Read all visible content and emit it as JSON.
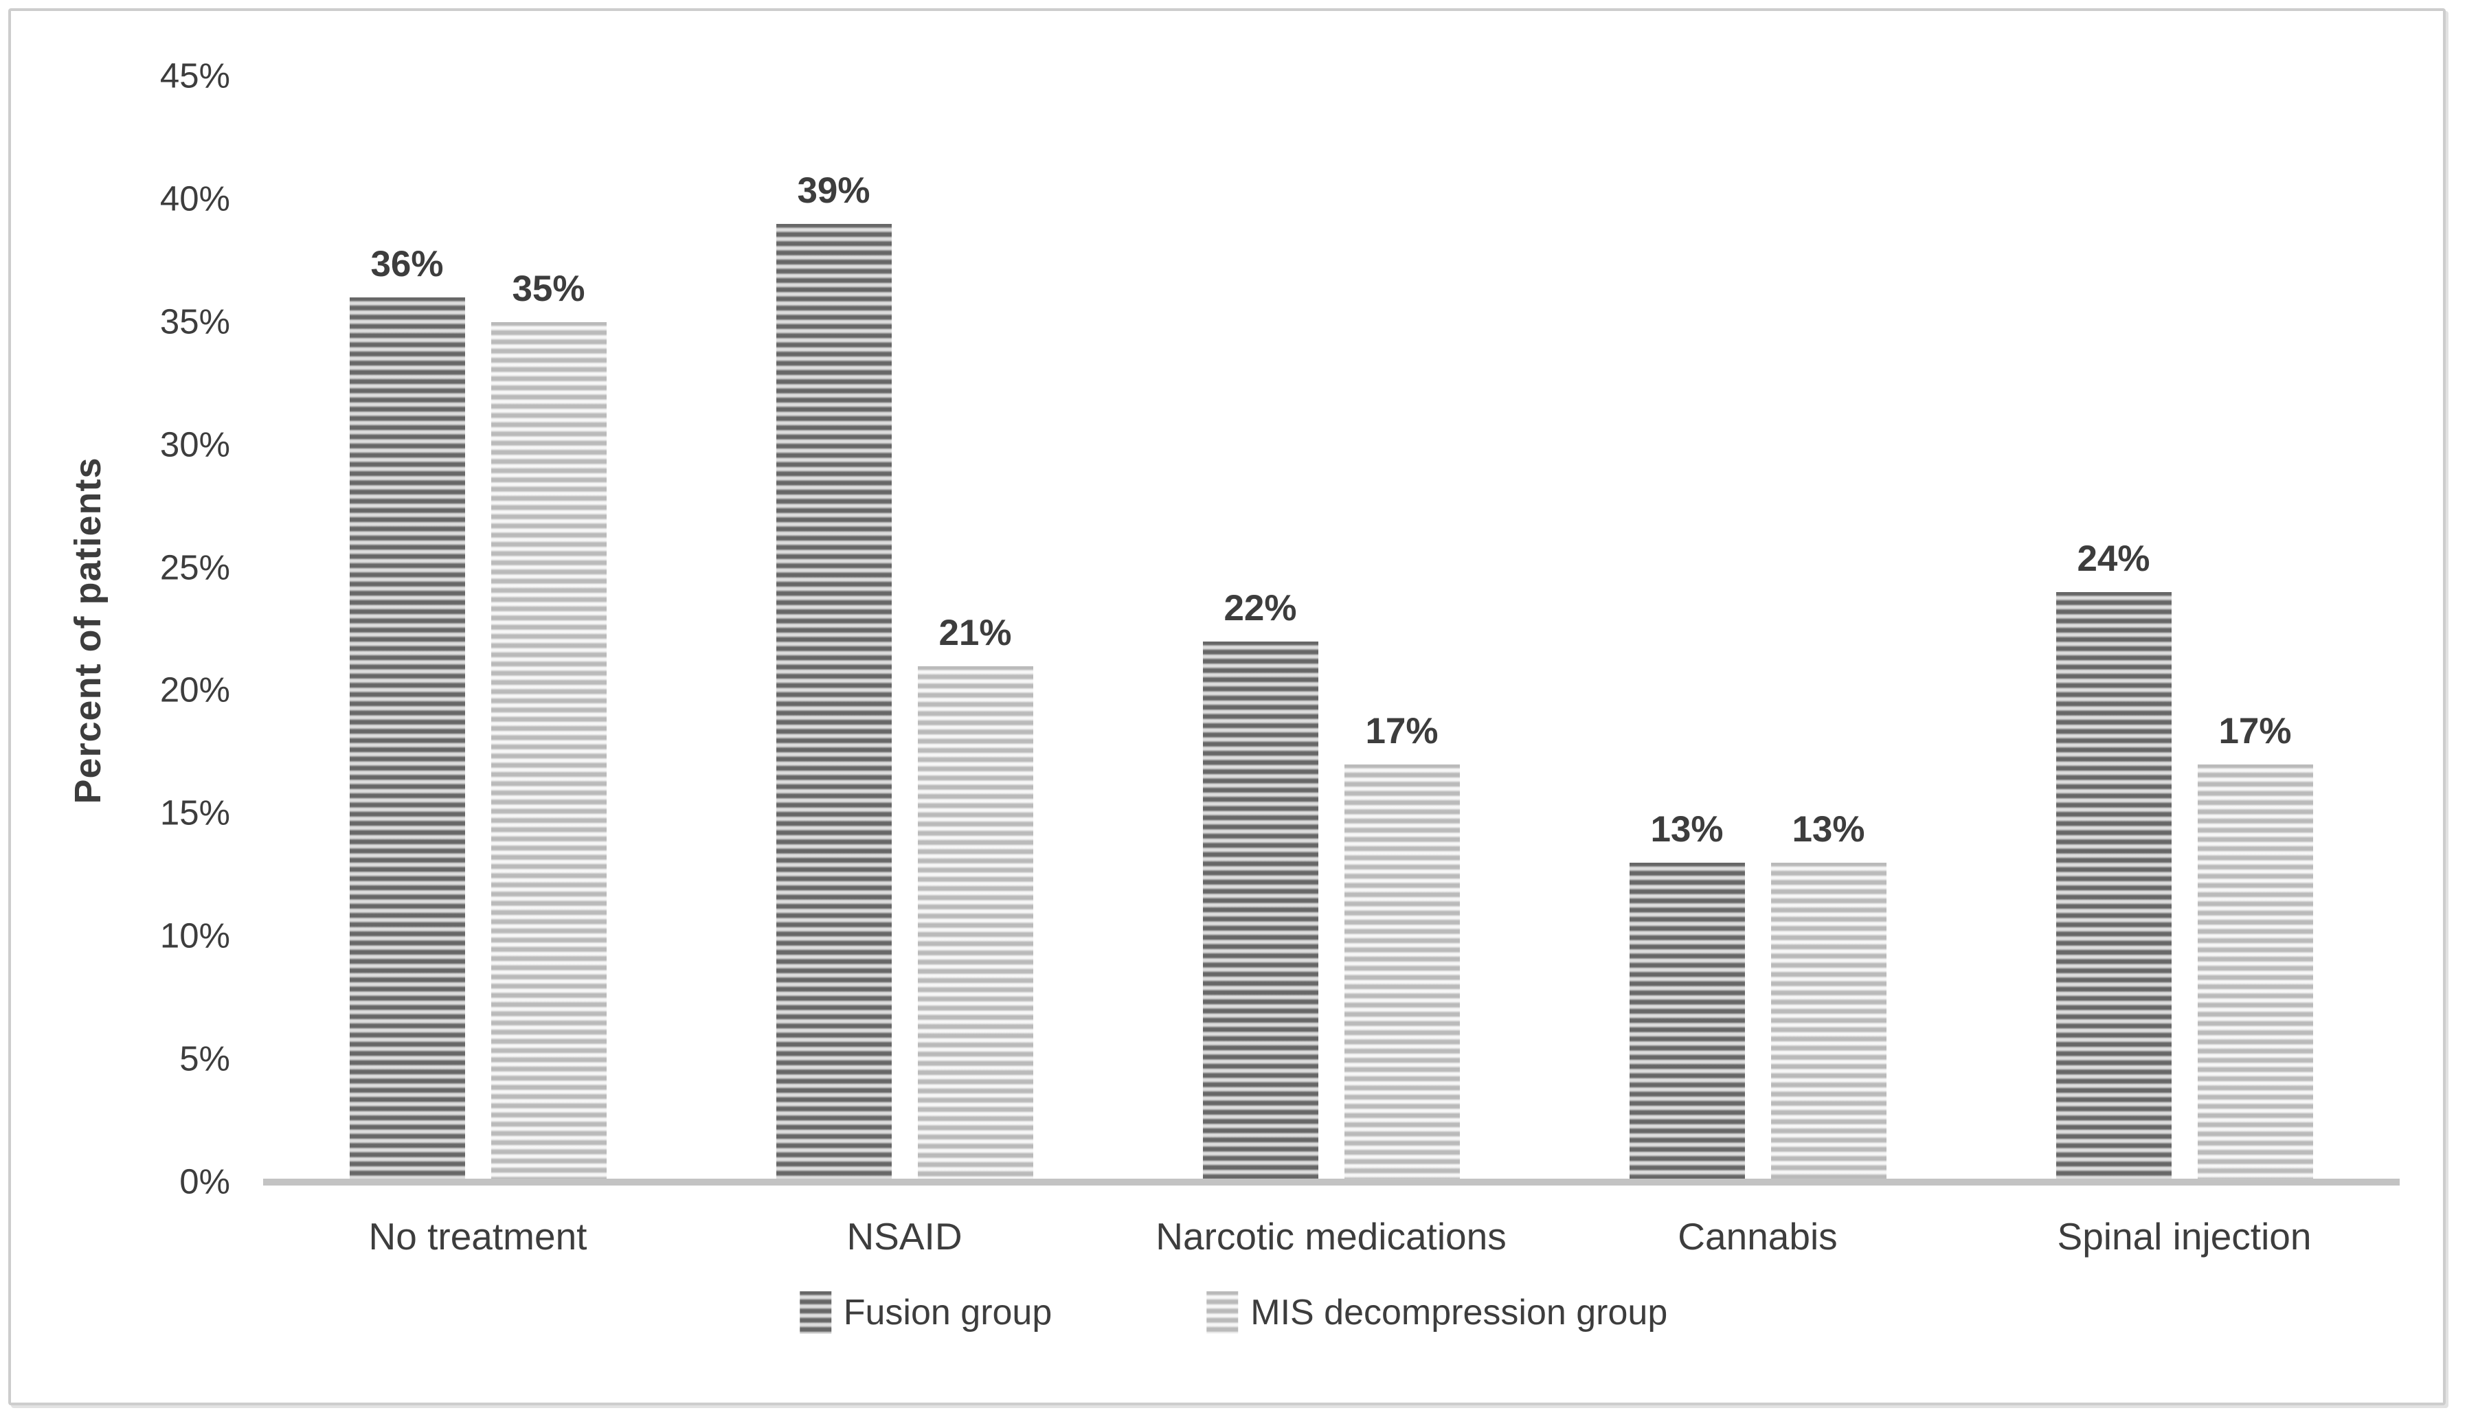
{
  "chart_data": {
    "type": "bar",
    "title": "",
    "ylabel": "Percent of patients",
    "xlabel": "",
    "categories": [
      "No treatment",
      "NSAID",
      "Narcotic medications",
      "Cannabis",
      "Spinal injection"
    ],
    "series": [
      {
        "name": "Fusion group",
        "values": [
          36,
          39,
          22,
          13,
          24
        ],
        "value_labels": [
          "36%",
          "39%",
          "22%",
          "13%",
          "24%"
        ]
      },
      {
        "name": "MIS decompression group",
        "values": [
          35,
          21,
          17,
          13,
          17
        ],
        "value_labels": [
          "35%",
          "21%",
          "17%",
          "13%",
          "17%"
        ]
      }
    ],
    "ylim": [
      0,
      45
    ],
    "ytick_step": 5,
    "yticks": [
      "45%",
      "40%",
      "35%",
      "30%",
      "25%",
      "20%",
      "15%",
      "10%",
      "5%",
      "0%"
    ],
    "grid": false,
    "legend_position": "bottom"
  },
  "colors": {
    "fusion_stripe": "#676767",
    "fusion_gap": "#dcdcdc",
    "mis_stripe": "#bababa",
    "mis_gap": "#f6f6f6",
    "axis_line": "#c3c3c3",
    "text": "#3d3d3d",
    "panel_border": "#cdcdcd",
    "background": "#ffffff"
  }
}
